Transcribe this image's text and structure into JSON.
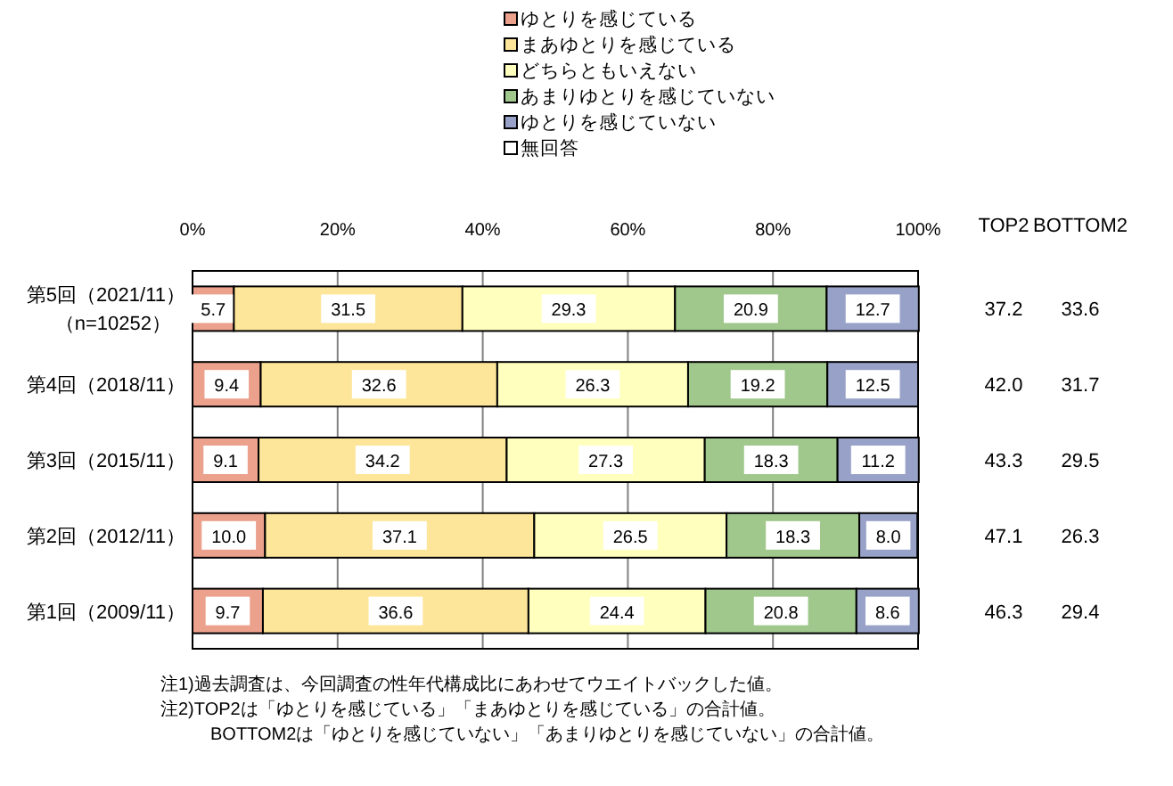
{
  "chart_data": {
    "type": "bar",
    "orientation": "horizontal",
    "stacked": true,
    "categories": [
      "第5回（2021/11）（n=10252）",
      "第4回（2018/11）",
      "第3回（2015/11）",
      "第2回（2012/11）",
      "第1回（2009/11）"
    ],
    "series": [
      {
        "name": "ゆとりを感じている",
        "color": "#eba18c",
        "values": [
          5.7,
          9.4,
          9.1,
          10.0,
          9.7
        ],
        "value_labels": [
          "5.7",
          "9.4",
          "9.1",
          "10.0",
          "9.7"
        ]
      },
      {
        "name": "まあゆとりを感じている",
        "color": "#fde699",
        "values": [
          31.5,
          32.6,
          34.2,
          37.1,
          36.6
        ],
        "value_labels": [
          "31.5",
          "32.6",
          "34.2",
          "37.1",
          "36.6"
        ]
      },
      {
        "name": "どちらともいえない",
        "color": "#ffffbe",
        "values": [
          29.3,
          26.3,
          27.3,
          26.5,
          24.4
        ],
        "value_labels": [
          "29.3",
          "26.3",
          "27.3",
          "26.5",
          "24.4"
        ]
      },
      {
        "name": "あまりゆとりを感じていない",
        "color": "#a0c88c",
        "values": [
          20.9,
          19.2,
          18.3,
          18.3,
          20.8
        ],
        "value_labels": [
          "20.9",
          "19.2",
          "18.3",
          "18.3",
          "20.8"
        ]
      },
      {
        "name": "ゆとりを感じていない",
        "color": "#98a2c8",
        "values": [
          12.7,
          12.5,
          11.2,
          8.0,
          8.6
        ],
        "value_labels": [
          "12.7",
          "12.5",
          "11.2",
          "8.0",
          "8.6"
        ]
      },
      {
        "name": "無回答",
        "color": "#ffffff",
        "values": [
          null,
          null,
          null,
          null,
          null
        ]
      }
    ],
    "xlim": [
      0,
      100
    ],
    "xticks": [
      {
        "value": 0,
        "label": "0%"
      },
      {
        "value": 20,
        "label": "20%"
      },
      {
        "value": 40,
        "label": "40%"
      },
      {
        "value": 60,
        "label": "60%"
      },
      {
        "value": 80,
        "label": "80%"
      },
      {
        "value": 100,
        "label": "100%"
      }
    ],
    "grid": "x",
    "legend": "top",
    "annotations": [
      "TOP2",
      "BOTTOM2",
      "37.2",
      "33.6",
      "42.0",
      "31.7",
      "43.3",
      "29.5",
      "47.1",
      "26.3",
      "46.3",
      "29.4",
      "注1)過去調査は、今回調査の性年代構成比にあわせてウエイトバックした値。",
      "注2)TOP2は「ゆとりを感じている」「まあゆとりを感じている」の合計値。",
      "BOTTOM2は「ゆとりを感じていない」「あまりゆとりを感じていない」の合計値。"
    ]
  }
}
